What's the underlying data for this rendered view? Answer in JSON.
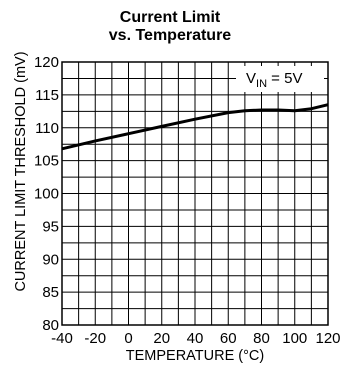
{
  "chart_data": {
    "type": "line",
    "title_lines": [
      "Current Limit",
      "vs. Temperature"
    ],
    "xlabel": "TEMPERATURE (°C)",
    "ylabel": "CURRENT LIMIT THRESHOLD (mV)",
    "xlim": [
      -40,
      120
    ],
    "ylim": [
      80,
      120
    ],
    "x_ticks": [
      -40,
      -20,
      0,
      20,
      40,
      60,
      80,
      100,
      120
    ],
    "y_ticks": [
      80,
      85,
      90,
      95,
      100,
      105,
      110,
      115,
      120
    ],
    "x_minor_step": 10,
    "y_minor_step": 2.5,
    "grid": true,
    "annotation": {
      "base": "V",
      "subscript": "IN",
      "rest": " = 5V",
      "placement": "top-right"
    },
    "series": [
      {
        "x": [
          -40,
          -20,
          0,
          20,
          40,
          60,
          70,
          80,
          90,
          100,
          110,
          120
        ],
        "y": [
          106.8,
          108.0,
          109.1,
          110.2,
          111.3,
          112.3,
          112.6,
          112.7,
          112.7,
          112.6,
          112.9,
          113.5
        ]
      }
    ],
    "line_color": "#000000"
  }
}
